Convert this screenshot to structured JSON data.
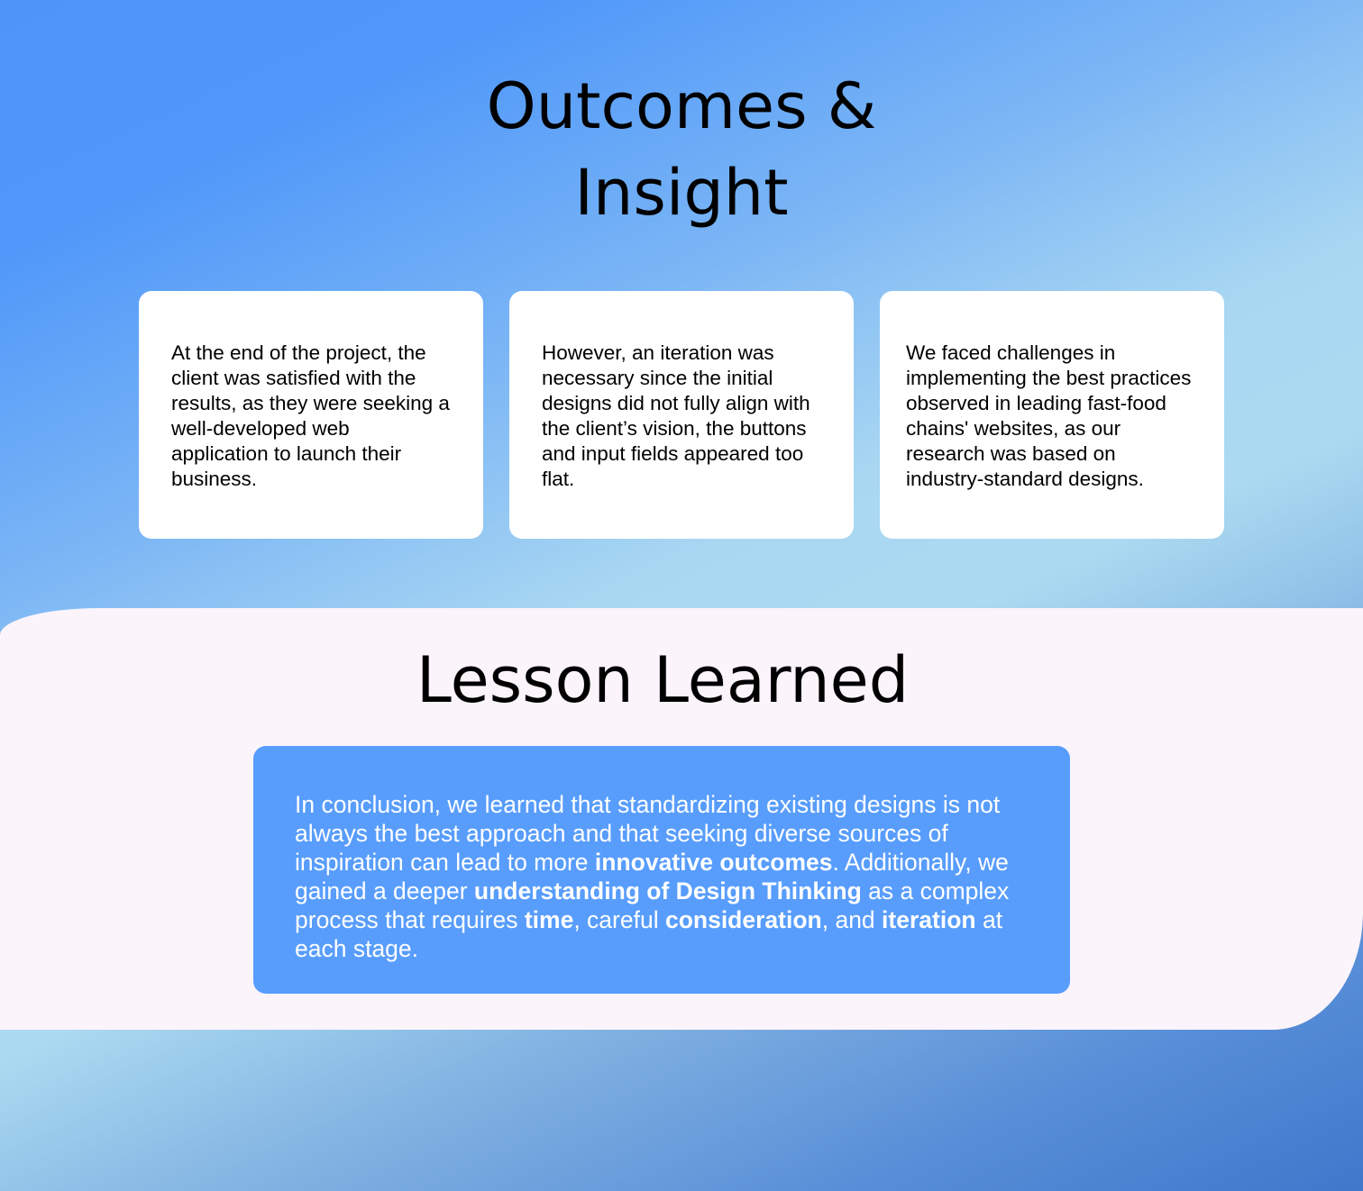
{
  "outcomes": {
    "title_line1": "Outcomes &",
    "title_line2": "Insight",
    "cards": [
      {
        "text": "At the end of the project, the client was satisfied with the results, as they were seeking a well-developed web application to launch their business."
      },
      {
        "text": "However, an iteration was necessary since the initial designs did not fully align with the client’s vision, the buttons and input fields appeared too flat."
      },
      {
        "text": "We faced challenges in implementing the best practices observed in leading fast-food chains' websites, as our research was based on industry-standard designs."
      }
    ]
  },
  "lesson": {
    "title": "Lesson Learned",
    "segments": [
      {
        "text": "In conclusion, we learned that standardizing existing designs is not always the best approach and that seeking diverse sources of inspiration can lead to more ",
        "bold": false
      },
      {
        "text": "innovative outcomes",
        "bold": true
      },
      {
        "text": ". Additionally, we gained a deeper ",
        "bold": false
      },
      {
        "text": "understanding of Design Thinking",
        "bold": true
      },
      {
        "text": " as a complex process that requires ",
        "bold": false
      },
      {
        "text": "time",
        "bold": true
      },
      {
        "text": ", careful ",
        "bold": false
      },
      {
        "text": "consideration",
        "bold": true
      },
      {
        "text": ", and ",
        "bold": false
      },
      {
        "text": "iteration",
        "bold": true
      },
      {
        "text": " at each stage.",
        "bold": false
      }
    ]
  },
  "colors": {
    "lesson_box": "#589dfc",
    "lesson_section": "#fbf4fb",
    "card": "#ffffff"
  }
}
